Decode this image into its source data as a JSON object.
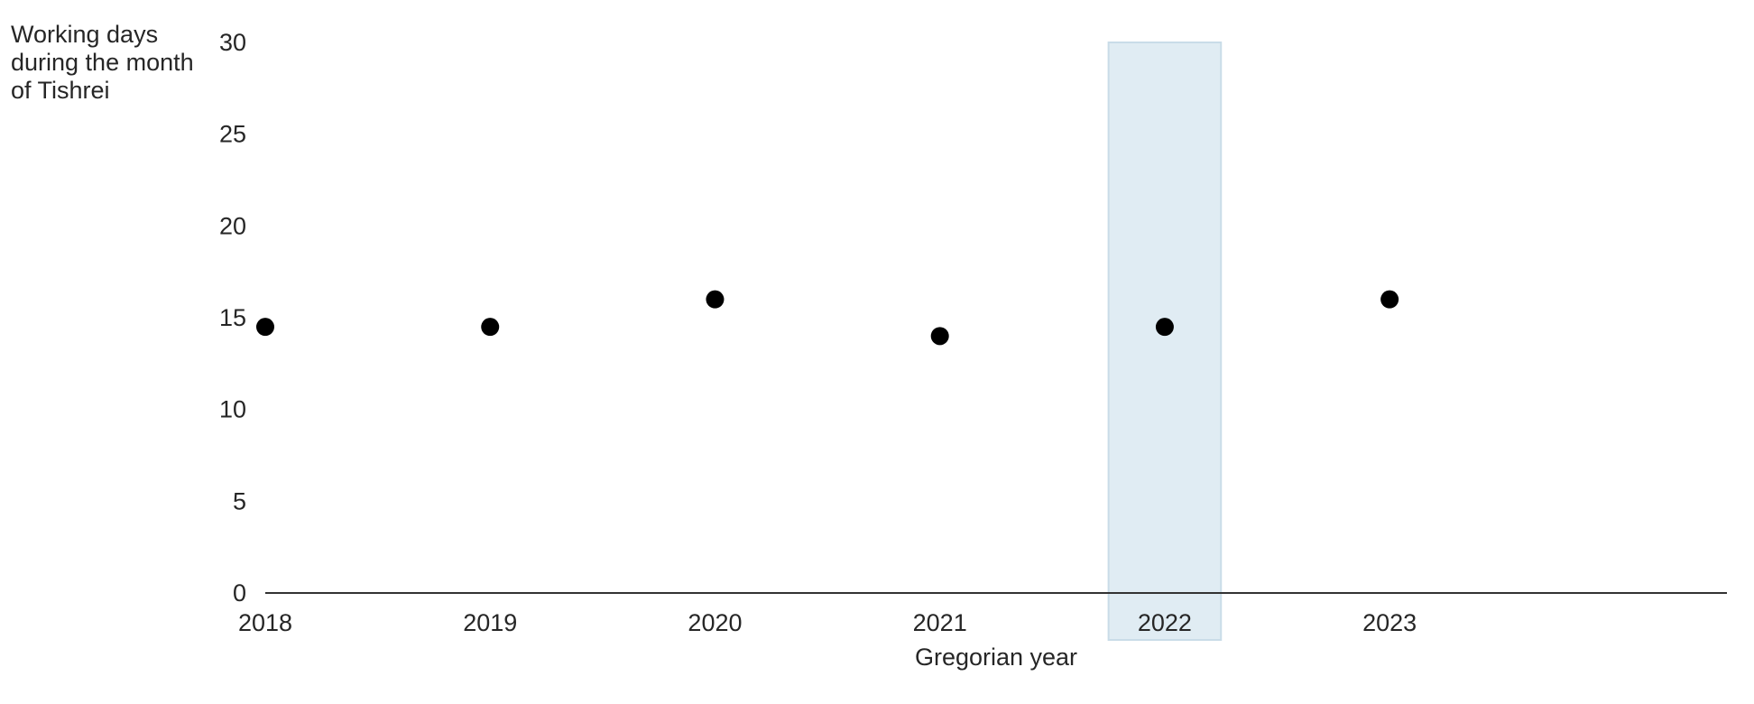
{
  "chart_data": {
    "type": "scatter",
    "ylabel_lines": [
      "Working days",
      "during the month",
      "of Tishrei"
    ],
    "xlabel": "Gregorian year",
    "x": [
      2018,
      2019,
      2020,
      2021,
      2022,
      2023
    ],
    "y": [
      14.5,
      14.5,
      16,
      14,
      14.5,
      16
    ],
    "xlim": [
      2018,
      2024.5
    ],
    "ylim": [
      0,
      30
    ],
    "xticks": [
      "2018",
      "2019",
      "2020",
      "2021",
      "2022",
      "2023"
    ],
    "yticks": [
      "0",
      "5",
      "10",
      "15",
      "20",
      "25",
      "30"
    ],
    "highlight": {
      "x_start": 2021.75,
      "x_end": 2022.25,
      "color": "#d6e6ef"
    },
    "marker_color": "#000000",
    "grid": false
  }
}
